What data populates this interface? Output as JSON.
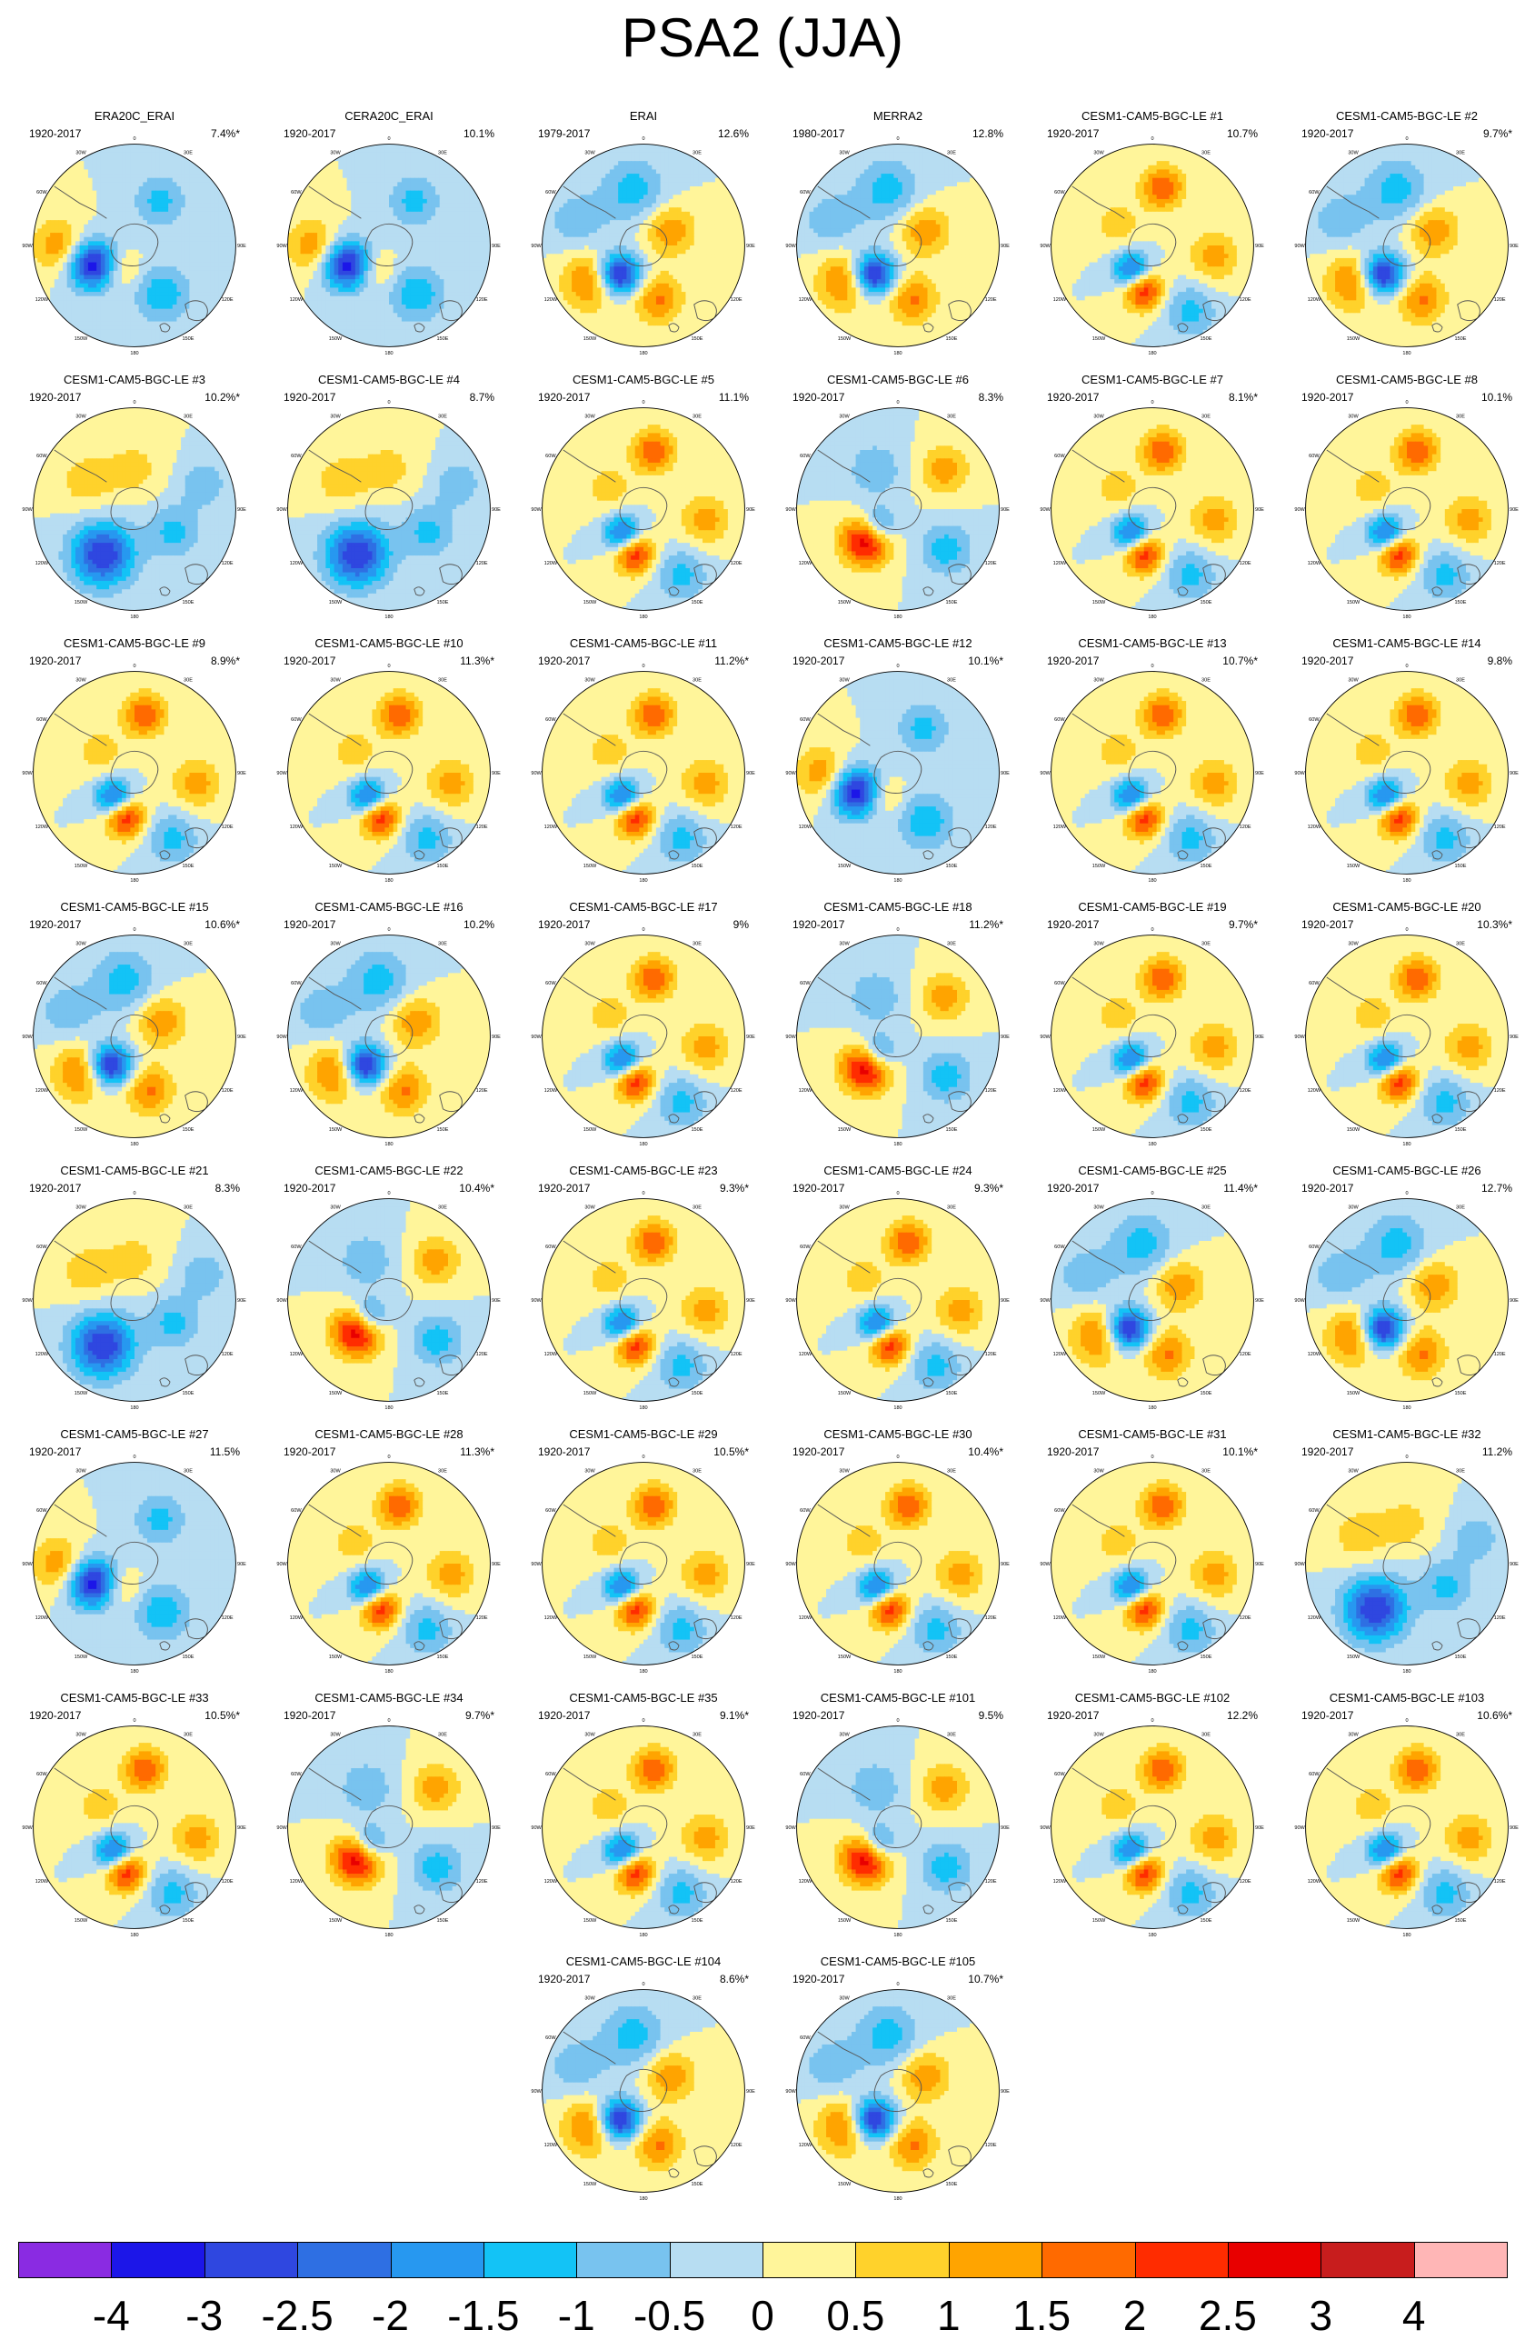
{
  "title": "PSA2 (JJA)",
  "panels": [
    {
      "name": "ERA20C_ERAI",
      "years": "1920-2017",
      "variance": "7.4%*",
      "pattern": 2
    },
    {
      "name": "CERA20C_ERAI",
      "years": "1920-2017",
      "variance": "10.1%",
      "pattern": 2
    },
    {
      "name": "ERAI",
      "years": "1979-2017",
      "variance": "12.6%",
      "pattern": 0
    },
    {
      "name": "MERRA2",
      "years": "1980-2017",
      "variance": "12.8%",
      "pattern": 0
    },
    {
      "name": "CESM1-CAM5-BGC-LE #1",
      "years": "1920-2017",
      "variance": "10.7%",
      "pattern": 1
    },
    {
      "name": "CESM1-CAM5-BGC-LE #2",
      "years": "1920-2017",
      "variance": "9.7%*",
      "pattern": 0
    },
    {
      "name": "CESM1-CAM5-BGC-LE #3",
      "years": "1920-2017",
      "variance": "10.2%*",
      "pattern": 3
    },
    {
      "name": "CESM1-CAM5-BGC-LE #4",
      "years": "1920-2017",
      "variance": "8.7%",
      "pattern": 3
    },
    {
      "name": "CESM1-CAM5-BGC-LE #5",
      "years": "1920-2017",
      "variance": "11.1%",
      "pattern": 1
    },
    {
      "name": "CESM1-CAM5-BGC-LE #6",
      "years": "1920-2017",
      "variance": "8.3%",
      "pattern": 4
    },
    {
      "name": "CESM1-CAM5-BGC-LE #7",
      "years": "1920-2017",
      "variance": "8.1%*",
      "pattern": 1
    },
    {
      "name": "CESM1-CAM5-BGC-LE #8",
      "years": "1920-2017",
      "variance": "10.1%",
      "pattern": 1
    },
    {
      "name": "CESM1-CAM5-BGC-LE #9",
      "years": "1920-2017",
      "variance": "8.9%*",
      "pattern": 1
    },
    {
      "name": "CESM1-CAM5-BGC-LE #10",
      "years": "1920-2017",
      "variance": "11.3%*",
      "pattern": 1
    },
    {
      "name": "CESM1-CAM5-BGC-LE #11",
      "years": "1920-2017",
      "variance": "11.2%*",
      "pattern": 1
    },
    {
      "name": "CESM1-CAM5-BGC-LE #12",
      "years": "1920-2017",
      "variance": "10.1%*",
      "pattern": 2
    },
    {
      "name": "CESM1-CAM5-BGC-LE #13",
      "years": "1920-2017",
      "variance": "10.7%*",
      "pattern": 1
    },
    {
      "name": "CESM1-CAM5-BGC-LE #14",
      "years": "1920-2017",
      "variance": "9.8%",
      "pattern": 1
    },
    {
      "name": "CESM1-CAM5-BGC-LE #15",
      "years": "1920-2017",
      "variance": "10.6%*",
      "pattern": 0
    },
    {
      "name": "CESM1-CAM5-BGC-LE #16",
      "years": "1920-2017",
      "variance": "10.2%",
      "pattern": 0
    },
    {
      "name": "CESM1-CAM5-BGC-LE #17",
      "years": "1920-2017",
      "variance": "9%",
      "pattern": 1
    },
    {
      "name": "CESM1-CAM5-BGC-LE #18",
      "years": "1920-2017",
      "variance": "11.2%*",
      "pattern": 4
    },
    {
      "name": "CESM1-CAM5-BGC-LE #19",
      "years": "1920-2017",
      "variance": "9.7%*",
      "pattern": 1
    },
    {
      "name": "CESM1-CAM5-BGC-LE #20",
      "years": "1920-2017",
      "variance": "10.3%*",
      "pattern": 1
    },
    {
      "name": "CESM1-CAM5-BGC-LE #21",
      "years": "1920-2017",
      "variance": "8.3%",
      "pattern": 3
    },
    {
      "name": "CESM1-CAM5-BGC-LE #22",
      "years": "1920-2017",
      "variance": "10.4%*",
      "pattern": 4
    },
    {
      "name": "CESM1-CAM5-BGC-LE #23",
      "years": "1920-2017",
      "variance": "9.3%*",
      "pattern": 1
    },
    {
      "name": "CESM1-CAM5-BGC-LE #24",
      "years": "1920-2017",
      "variance": "9.3%*",
      "pattern": 1
    },
    {
      "name": "CESM1-CAM5-BGC-LE #25",
      "years": "1920-2017",
      "variance": "11.4%*",
      "pattern": 0
    },
    {
      "name": "CESM1-CAM5-BGC-LE #26",
      "years": "1920-2017",
      "variance": "12.7%",
      "pattern": 0
    },
    {
      "name": "CESM1-CAM5-BGC-LE #27",
      "years": "1920-2017",
      "variance": "11.5%",
      "pattern": 2
    },
    {
      "name": "CESM1-CAM5-BGC-LE #28",
      "years": "1920-2017",
      "variance": "11.3%*",
      "pattern": 1
    },
    {
      "name": "CESM1-CAM5-BGC-LE #29",
      "years": "1920-2017",
      "variance": "10.5%*",
      "pattern": 1
    },
    {
      "name": "CESM1-CAM5-BGC-LE #30",
      "years": "1920-2017",
      "variance": "10.4%*",
      "pattern": 1
    },
    {
      "name": "CESM1-CAM5-BGC-LE #31",
      "years": "1920-2017",
      "variance": "10.1%*",
      "pattern": 1
    },
    {
      "name": "CESM1-CAM5-BGC-LE #32",
      "years": "1920-2017",
      "variance": "11.2%",
      "pattern": 3
    },
    {
      "name": "CESM1-CAM5-BGC-LE #33",
      "years": "1920-2017",
      "variance": "10.5%*",
      "pattern": 1
    },
    {
      "name": "CESM1-CAM5-BGC-LE #34",
      "years": "1920-2017",
      "variance": "9.7%*",
      "pattern": 4
    },
    {
      "name": "CESM1-CAM5-BGC-LE #35",
      "years": "1920-2017",
      "variance": "9.1%*",
      "pattern": 1
    },
    {
      "name": "CESM1-CAM5-BGC-LE #101",
      "years": "1920-2017",
      "variance": "9.5%",
      "pattern": 4
    },
    {
      "name": "CESM1-CAM5-BGC-LE #102",
      "years": "1920-2017",
      "variance": "12.2%",
      "pattern": 1
    },
    {
      "name": "CESM1-CAM5-BGC-LE #103",
      "years": "1920-2017",
      "variance": "10.6%*",
      "pattern": 1
    },
    {
      "name": "CESM1-CAM5-BGC-LE #104",
      "years": "1920-2017",
      "variance": "8.6%*",
      "pattern": 0
    },
    {
      "name": "CESM1-CAM5-BGC-LE #105",
      "years": "1920-2017",
      "variance": "10.7%*",
      "pattern": 0
    }
  ],
  "map_labels": {
    "lon0": "0",
    "lon30e": "30E",
    "lon90e": "90E",
    "lon120e": "120E",
    "lon150e": "150E",
    "lon180": "180",
    "lon150w": "150W",
    "lon120w": "120W",
    "lon90w": "90W",
    "lon60w": "60W",
    "lon30w": "30W"
  },
  "colorbar": {
    "colors": [
      "#8a2be2",
      "#1c16e8",
      "#2f47e0",
      "#2e6fe3",
      "#2798f0",
      "#13c3f6",
      "#78c3ef",
      "#b7ddf2",
      "#fff59a",
      "#ffd22b",
      "#ffa400",
      "#ff6a00",
      "#ff2c00",
      "#e80000",
      "#c81d1d",
      "#ffb6b6"
    ],
    "labels": [
      "-4",
      "-3",
      "-2.5",
      "-2",
      "-1.5",
      "-1",
      "-0.5",
      "0",
      "0.5",
      "1",
      "1.5",
      "2",
      "2.5",
      "3",
      "4"
    ],
    "levels": [
      -4,
      -3,
      -2.5,
      -2,
      -1.5,
      -1,
      -0.5,
      0,
      0.5,
      1,
      1.5,
      2,
      2.5,
      3,
      4
    ]
  }
}
